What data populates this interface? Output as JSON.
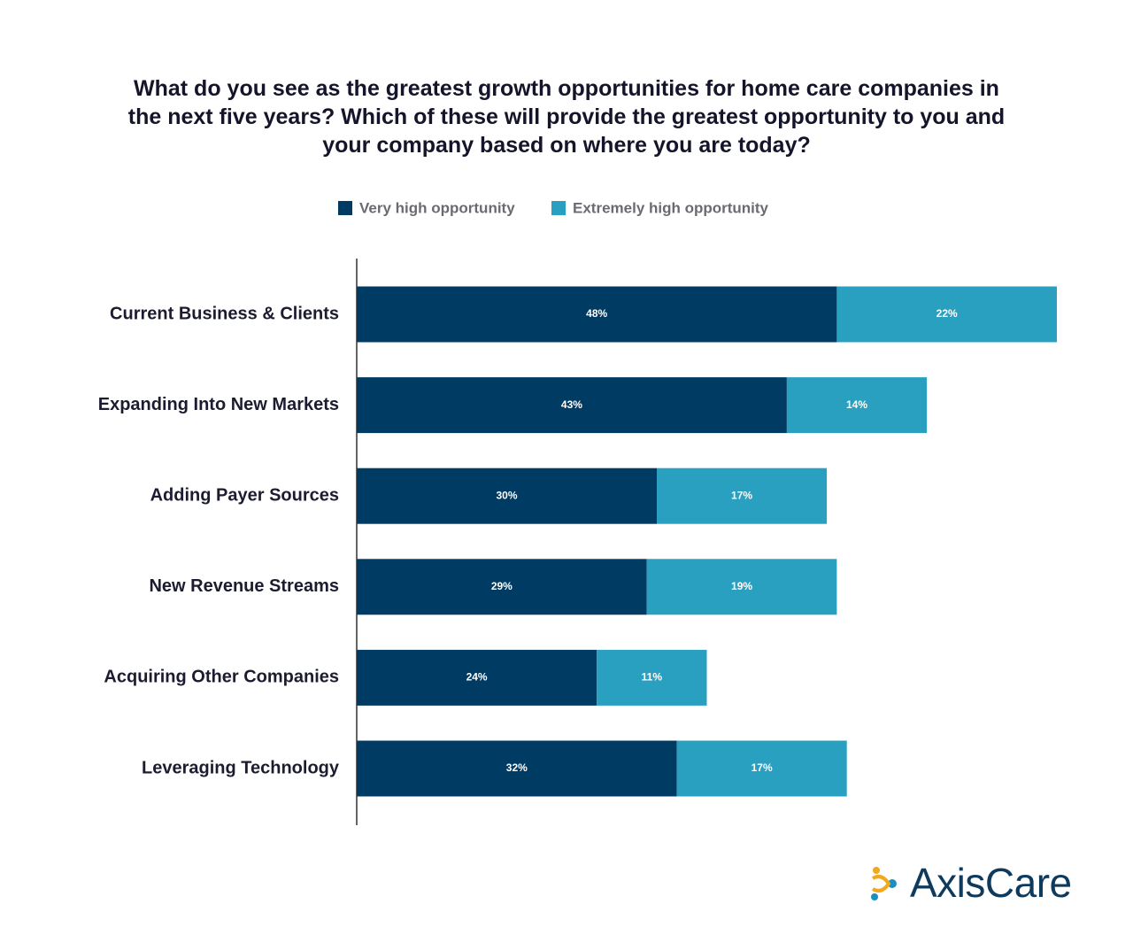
{
  "chart_data": {
    "type": "stacked-bar-horizontal",
    "title": "What do you see as the greatest growth opportunities for home care companies in the next five years? Which of these will provide the greatest opportunity to you and your company based on where you are today?",
    "categories": [
      "Current Business & Clients",
      "Expanding Into New Markets",
      "Adding Payer Sources",
      "New Revenue Streams",
      "Acquiring Other Companies",
      "Leveraging Technology"
    ],
    "series": [
      {
        "name": "Very high opportunity",
        "color": "#003b63",
        "values": [
          48,
          43,
          30,
          29,
          24,
          32
        ],
        "value_labels": [
          "48%",
          "43%",
          "30%",
          "29%",
          "24%",
          "32%"
        ]
      },
      {
        "name": "Extremely high opportunity",
        "color": "#2aa0c1",
        "values": [
          22,
          14,
          17,
          19,
          11,
          17
        ],
        "value_labels": [
          "22%",
          "14%",
          "17%",
          "19%",
          "11%",
          "17%"
        ]
      }
    ],
    "legend": "top"
  },
  "logo_text": "AxisCare"
}
